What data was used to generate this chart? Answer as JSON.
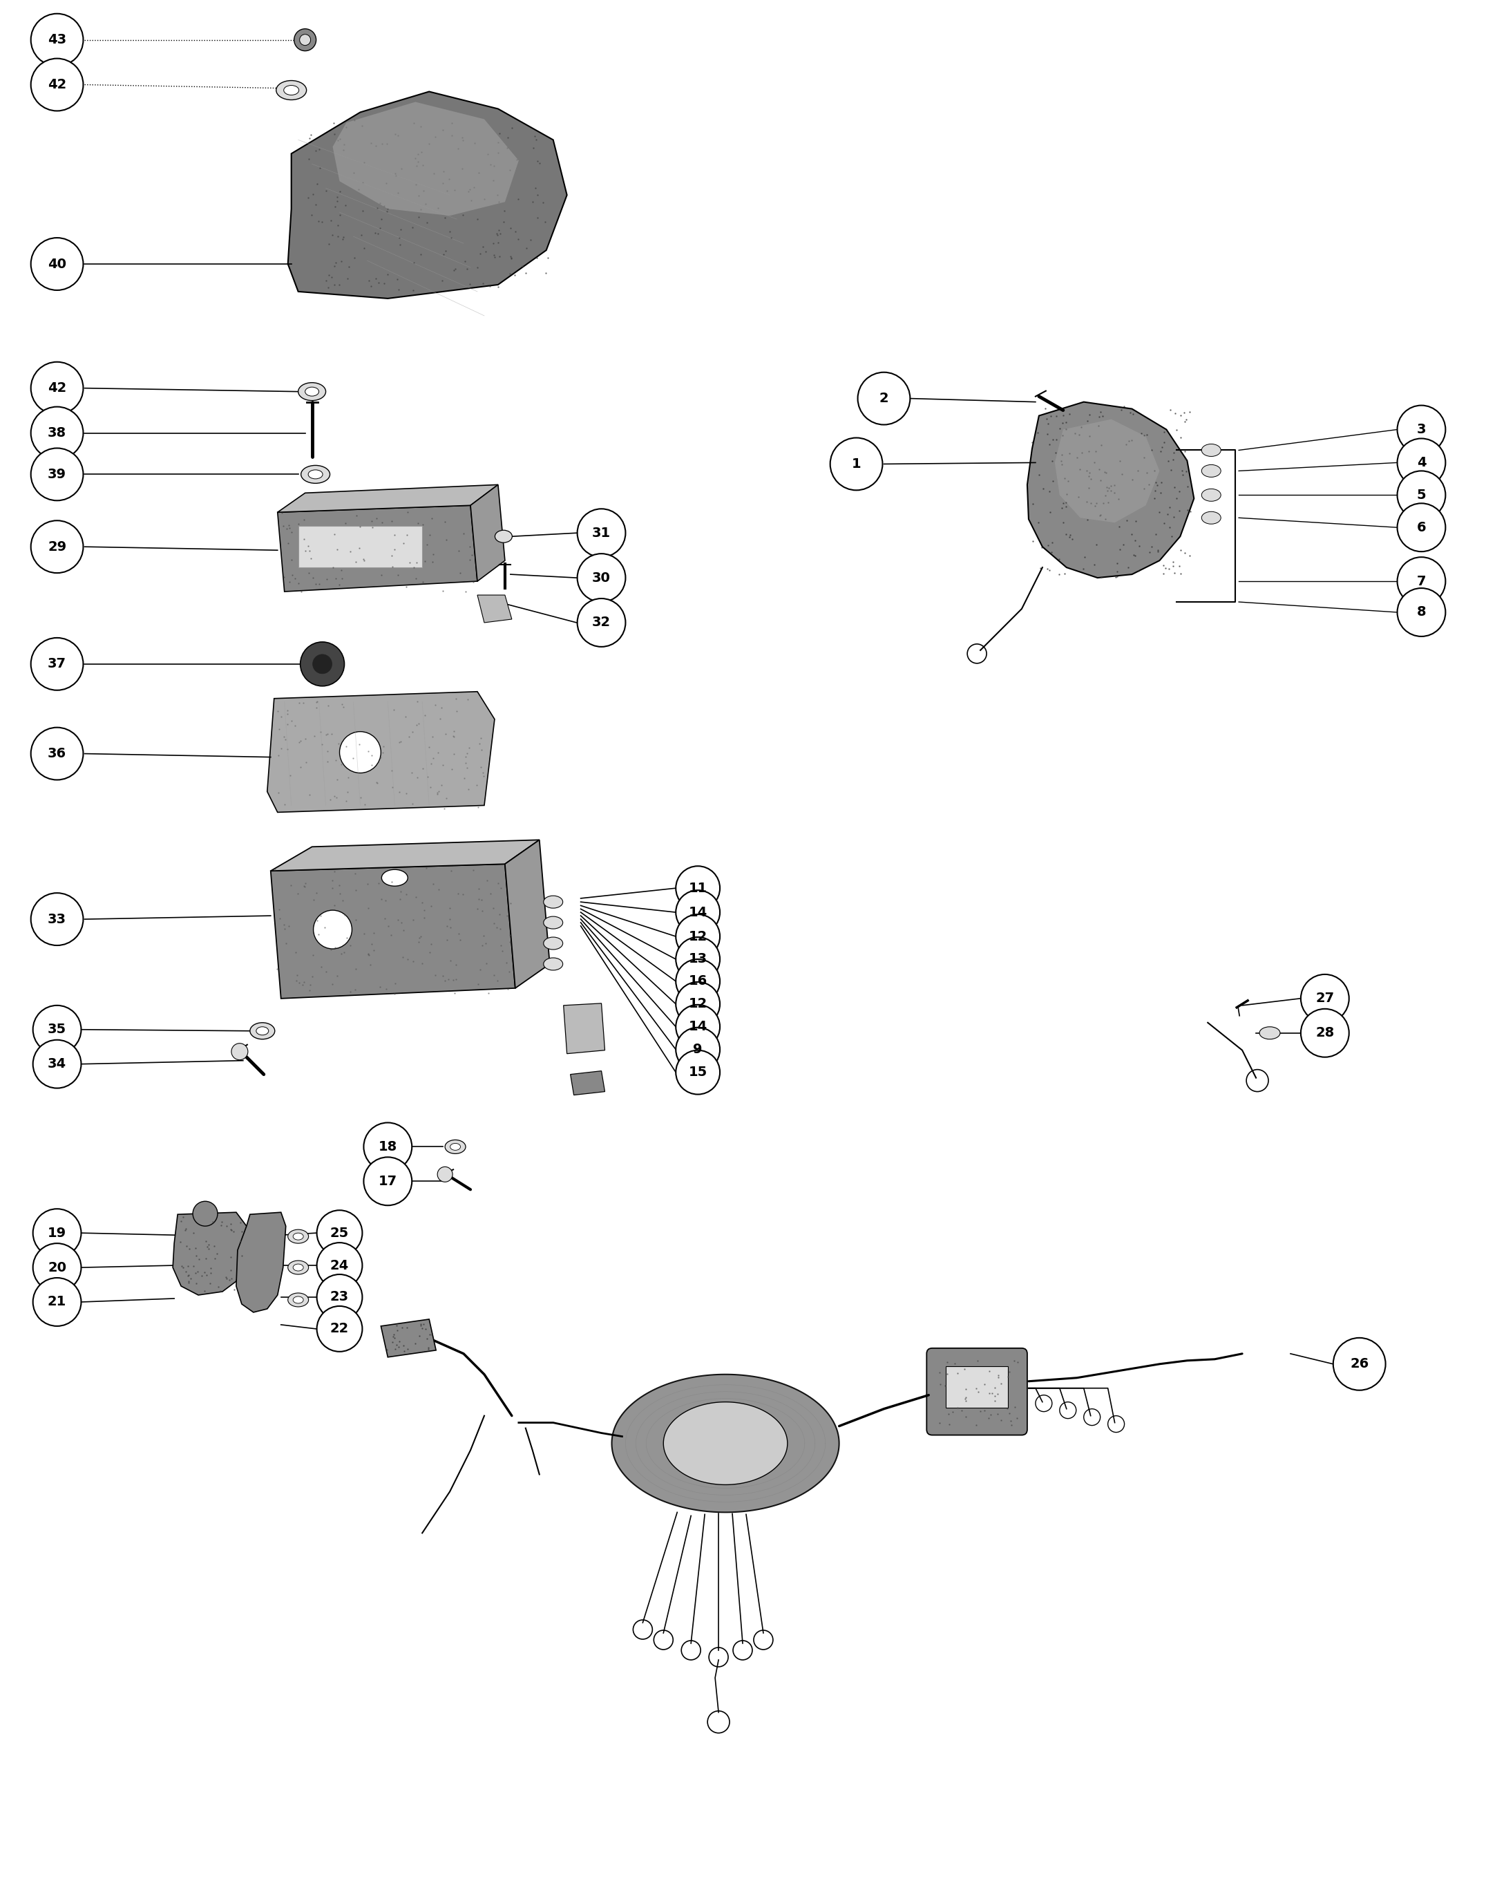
{
  "background_color": "#ffffff",
  "line_color": "#000000",
  "figure_width": 21.51,
  "figure_height": 27.45,
  "gray_dark": "#555555",
  "gray_mid": "#888888",
  "gray_light": "#bbbbbb",
  "gray_very_light": "#dddddd"
}
